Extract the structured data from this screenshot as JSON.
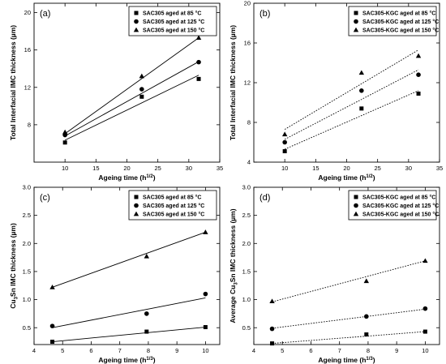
{
  "chart_data": [
    {
      "type": "scatter",
      "panel_label": "(a)",
      "xlabel": "Ageing time (h",
      "xlabel_exp": "1/2",
      "ylabel": "Total Interfacial IMC thickness (µm)",
      "xlim": [
        5,
        35
      ],
      "ylim": [
        4,
        21
      ],
      "xticks": [
        "10",
        "15",
        "20",
        "25",
        "30",
        "35"
      ],
      "yticks": [
        "8",
        "12",
        "16",
        "20"
      ],
      "fit_style": "solid",
      "x": [
        10,
        22.4,
        31.6
      ],
      "series": [
        {
          "name": "SAC305 aged at 85 °C",
          "marker": "square",
          "values": [
            6.1,
            11.0,
            12.9
          ],
          "fit": [
            6.35,
            13.3
          ]
        },
        {
          "name": "SAC305 aged at 125 °C",
          "marker": "circle",
          "values": [
            6.9,
            11.8,
            14.7
          ],
          "fit": [
            6.8,
            14.75
          ]
        },
        {
          "name": "SAC305 aged at 150 °C",
          "marker": "triangle",
          "values": [
            7.2,
            13.2,
            17.3
          ],
          "fit": [
            7.05,
            17.3
          ]
        }
      ]
    },
    {
      "type": "scatter",
      "panel_label": "(b)",
      "xlabel": "Ageing time (h",
      "xlabel_exp": "1/2",
      "ylabel": "Total Interfacial IMC thickness (µm)",
      "xlim": [
        5,
        35
      ],
      "ylim": [
        4,
        20
      ],
      "xticks": [
        "10",
        "15",
        "20",
        "25",
        "30",
        "35"
      ],
      "yticks": [
        "4",
        "8",
        "12",
        "16",
        "20"
      ],
      "fit_style": "dotted",
      "x": [
        10,
        22.4,
        31.6
      ],
      "series": [
        {
          "name": "SAC305-KGC aged at 85 °C",
          "marker": "square",
          "values": [
            5.1,
            9.4,
            10.9
          ],
          "fit": [
            5.3,
            11.2
          ]
        },
        {
          "name": "SAC305-KGC aged at 125 °C",
          "marker": "circle",
          "values": [
            6.0,
            11.2,
            12.8
          ],
          "fit": [
            6.3,
            13.3
          ]
        },
        {
          "name": "SAC305-KGC aged at 150 °C",
          "marker": "triangle",
          "values": [
            6.8,
            13.0,
            14.7
          ],
          "fit": [
            7.3,
            15.3
          ]
        }
      ]
    },
    {
      "type": "scatter",
      "panel_label": "(c)",
      "xlabel": "Ageing time (h",
      "xlabel_exp": "1/3",
      "ylabel": "Cu",
      "ylabel_sub": "3",
      "ylabel_rest": "Sn IMC thickness (µm)",
      "xlim": [
        4,
        10.5
      ],
      "ylim": [
        0.2,
        3.0
      ],
      "xticks": [
        "4",
        "5",
        "6",
        "7",
        "8",
        "9",
        "10"
      ],
      "yticks": [
        "0.5",
        "1.0",
        "1.5",
        "2.0",
        "2.5",
        "3.0"
      ],
      "fit_style": "solid",
      "x": [
        4.64,
        7.94,
        10
      ],
      "series": [
        {
          "name": "SAC305 aged at 85 °C",
          "marker": "square",
          "values": [
            0.25,
            0.43,
            0.51
          ],
          "fit": [
            0.25,
            0.51
          ]
        },
        {
          "name": "SAC305 aged at 125 °C",
          "marker": "circle",
          "values": [
            0.53,
            0.75,
            1.1
          ],
          "fit": [
            0.5,
            1.03
          ]
        },
        {
          "name": "SAC305 aged at 150 °C",
          "marker": "triangle",
          "values": [
            1.22,
            1.77,
            2.2
          ],
          "fit": [
            1.22,
            2.2
          ]
        }
      ]
    },
    {
      "type": "scatter",
      "panel_label": "(d)",
      "xlabel": "Ageing time (h",
      "xlabel_exp": "1/3",
      "ylabel": "Average Cu",
      "ylabel_sub": "3",
      "ylabel_rest": "Sn IMC thickness (µm)",
      "xlim": [
        4,
        10.5
      ],
      "ylim": [
        0.2,
        3.0
      ],
      "xticks": [
        "4",
        "5",
        "6",
        "7",
        "8",
        "9",
        "10"
      ],
      "yticks": [
        "0.5",
        "1.0",
        "1.5",
        "2.0",
        "2.5",
        "3.0"
      ],
      "fit_style": "dotted",
      "x": [
        4.64,
        7.94,
        10
      ],
      "series": [
        {
          "name": "SAC305-KGC aged at 85 °C",
          "marker": "square",
          "values": [
            0.22,
            0.38,
            0.43
          ],
          "fit": [
            0.22,
            0.43
          ]
        },
        {
          "name": "SAC305-KGC aged at 125 °C",
          "marker": "circle",
          "values": [
            0.48,
            0.7,
            0.84
          ],
          "fit": [
            0.49,
            0.83
          ]
        },
        {
          "name": "SAC305-KGC aged at 150 °C",
          "marker": "triangle",
          "values": [
            0.97,
            1.33,
            1.69
          ],
          "fit": [
            0.96,
            1.69
          ]
        }
      ]
    }
  ]
}
